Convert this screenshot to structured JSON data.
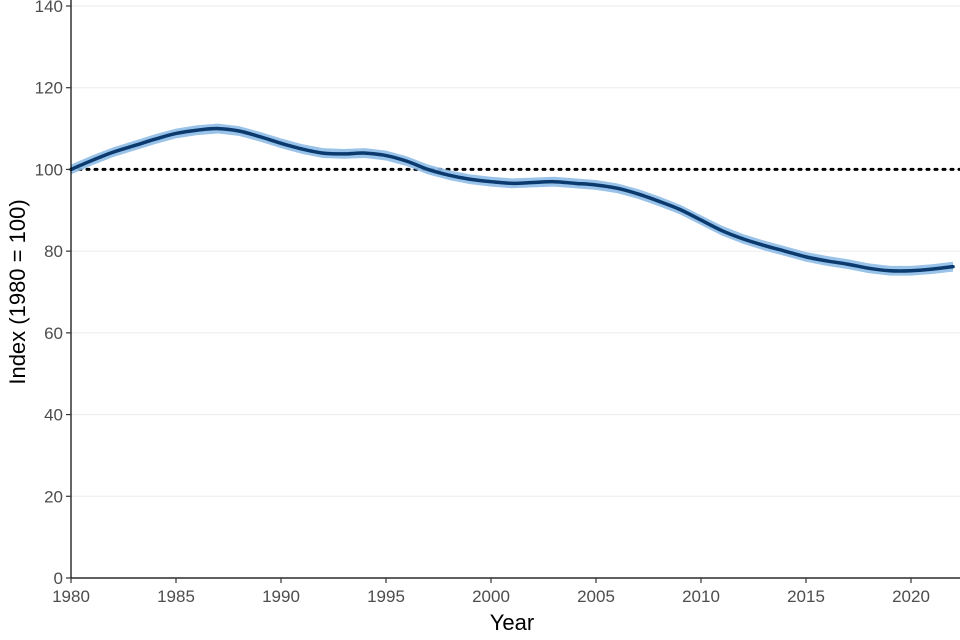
{
  "chart_data": {
    "type": "line",
    "title": "",
    "xlabel": "Year",
    "ylabel": "Index (1980 = 100)",
    "xlim": [
      1980,
      2022
    ],
    "ylim": [
      0,
      140
    ],
    "x_ticks": [
      "1980",
      "1985",
      "1990",
      "1995",
      "2000",
      "2005",
      "2010",
      "2015",
      "2020"
    ],
    "y_ticks": [
      "0",
      "20",
      "40",
      "60",
      "80",
      "100",
      "120",
      "140"
    ],
    "grid": "horizontal",
    "legend": "none",
    "reference_line": {
      "y": 100,
      "style": "dotted",
      "color": "#000000"
    },
    "series": [
      {
        "color": "#0b3a6e",
        "band_color": "#8fbde8",
        "band_halfwidth": 1.2,
        "x": [
          1980,
          1981,
          1982,
          1983,
          1984,
          1985,
          1986,
          1987,
          1988,
          1989,
          1990,
          1991,
          1992,
          1993,
          1994,
          1995,
          1996,
          1997,
          1998,
          1999,
          2000,
          2001,
          2002,
          2003,
          2004,
          2005,
          2006,
          2007,
          2008,
          2009,
          2010,
          2011,
          2012,
          2013,
          2014,
          2015,
          2016,
          2017,
          2018,
          2019,
          2020,
          2021,
          2022
        ],
        "values": [
          100,
          102.2,
          104.2,
          105.8,
          107.4,
          108.8,
          109.6,
          110,
          109.4,
          108,
          106.4,
          105,
          104,
          103.8,
          104,
          103.4,
          102,
          100,
          98.6,
          97.6,
          97,
          96.6,
          96.8,
          97,
          96.6,
          96.2,
          95.4,
          94,
          92.2,
          90.2,
          87.6,
          85,
          83,
          81.4,
          80,
          78.6,
          77.6,
          76.8,
          75.8,
          75.2,
          75.2,
          75.6,
          76.2
        ]
      }
    ]
  }
}
